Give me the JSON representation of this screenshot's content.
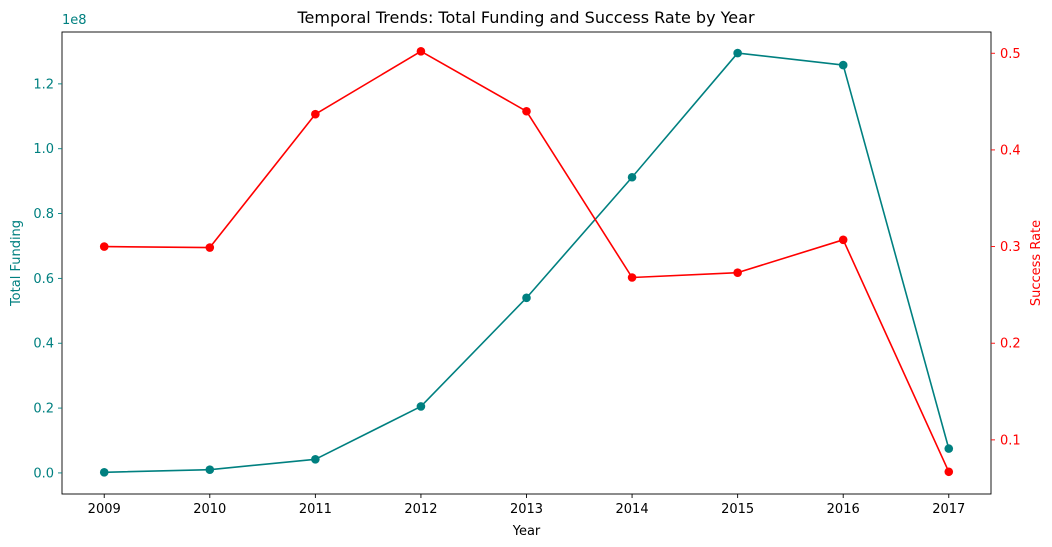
{
  "chart_data": {
    "type": "line",
    "title": "Temporal Trends: Total Funding and Success Rate by Year",
    "xlabel": "Year",
    "x": [
      2009,
      2010,
      2011,
      2012,
      2013,
      2014,
      2015,
      2016,
      2017
    ],
    "x_tick_labels": [
      "2009",
      "2010",
      "2011",
      "2012",
      "2013",
      "2014",
      "2015",
      "2016",
      "2017"
    ],
    "xlim": [
      2008.6,
      2017.4
    ],
    "y_left": {
      "label": "Total Funding",
      "exponent_label": "1e8",
      "ylim": [
        -0.065,
        1.36
      ],
      "ticks": [
        0.0,
        0.2,
        0.4,
        0.6,
        0.8,
        1.0,
        1.2
      ],
      "tick_labels": [
        "0.0",
        "0.2",
        "0.4",
        "0.6",
        "0.8",
        "1.0",
        "1.2"
      ],
      "color": "#008080"
    },
    "y_right": {
      "label": "Success Rate",
      "ylim": [
        0.044,
        0.522
      ],
      "ticks": [
        0.1,
        0.2,
        0.3,
        0.4,
        0.5
      ],
      "tick_labels": [
        "0.1",
        "0.2",
        "0.3",
        "0.4",
        "0.5"
      ],
      "color": "#ff0000"
    },
    "series": [
      {
        "axis": "left",
        "color": "#008080",
        "values": [
          0.002,
          0.01,
          0.042,
          0.205,
          0.54,
          0.912,
          1.295,
          1.258,
          0.075
        ]
      },
      {
        "axis": "right",
        "color": "#ff0000",
        "values": [
          0.3,
          0.299,
          0.437,
          0.502,
          0.44,
          0.268,
          0.273,
          0.307,
          0.067
        ]
      }
    ],
    "grid": false
  }
}
